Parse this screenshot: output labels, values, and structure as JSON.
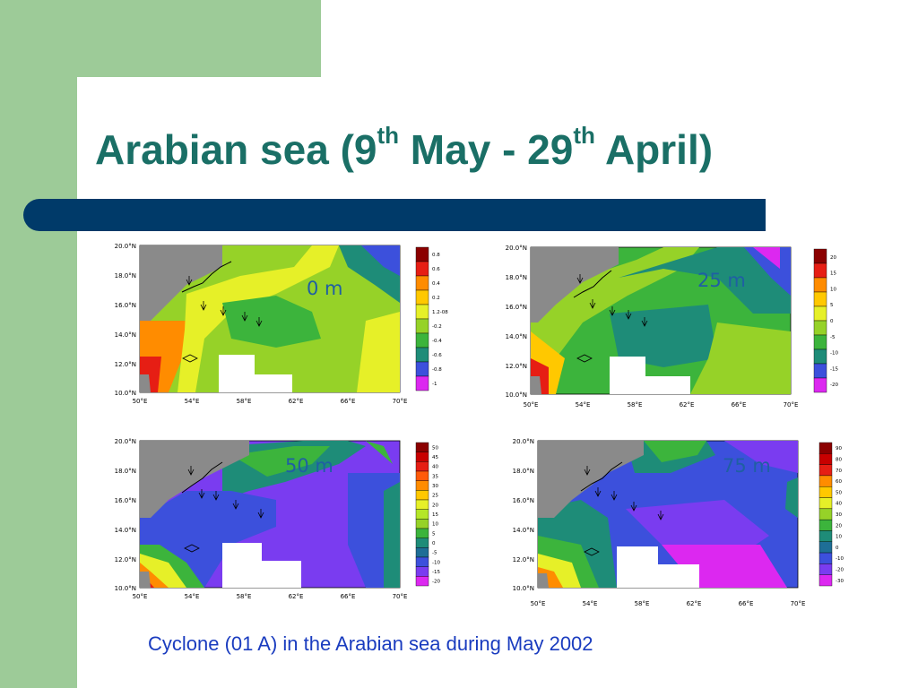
{
  "title": {
    "part1": "Arabian sea (9",
    "sup1": "th",
    "part2": " May - 29",
    "sup2": "th",
    "part3": " April)"
  },
  "caption": "Cyclone (01 A) in the Arabian sea during May 2002",
  "colors": {
    "band": "#9dcb98",
    "title": "#1a6f66",
    "bar": "#003a69",
    "caption": "#1a3cbf",
    "depth_label": "#1f5fa3",
    "land": "#8a8a8a"
  },
  "axes": {
    "lon": [
      "50°E",
      "54°E",
      "58°E",
      "62°E",
      "66°E",
      "70°E"
    ],
    "lat": [
      "20.0°N",
      "18.0°N",
      "16.0°N",
      "14.0°N",
      "12.0°N",
      "10.0°N"
    ]
  },
  "panels": [
    {
      "id": "p0",
      "depth": "0 m",
      "colorbar": [
        "0.8",
        "0.6",
        "0.4",
        "0.2",
        "1.2-08",
        "-0.2",
        "-0.4",
        "-0.6",
        "-0.8",
        "-1"
      ],
      "colors": [
        "#8b0000",
        "#e61e14",
        "#ff8c00",
        "#ffc800",
        "#e6f028",
        "#96d228",
        "#3cb43c",
        "#1e8c78",
        "#3c50dc",
        "#dc28f0"
      ]
    },
    {
      "id": "p25",
      "depth": "25 m",
      "colorbar": [
        "20",
        "15",
        "10",
        "5",
        "0",
        "-5",
        "-10",
        "-15",
        "-20"
      ],
      "colors": [
        "#8b0000",
        "#e61e14",
        "#ff8c00",
        "#ffc800",
        "#e6f028",
        "#96d228",
        "#3cb43c",
        "#1e8c78",
        "#3c50dc",
        "#dc28f0"
      ]
    },
    {
      "id": "p50",
      "depth": "50 m",
      "colorbar": [
        "50",
        "45",
        "40",
        "35",
        "30",
        "25",
        "20",
        "15",
        "10",
        "5",
        "0",
        "-5",
        "-10",
        "-15",
        "-20"
      ],
      "colors": [
        "#8b0000",
        "#c80000",
        "#e61e14",
        "#ff5a0a",
        "#ff8c00",
        "#ffc800",
        "#e6f028",
        "#b4e628",
        "#96d228",
        "#3cb43c",
        "#1e8c78",
        "#1e6e96",
        "#3c50dc",
        "#7a3cf0",
        "#dc28f0"
      ]
    },
    {
      "id": "p75",
      "depth": "75 m",
      "colorbar": [
        "90",
        "80",
        "70",
        "60",
        "50",
        "40",
        "30",
        "20",
        "10",
        "0",
        "-10",
        "-20",
        "-30"
      ],
      "colors": [
        "#8b0000",
        "#c80000",
        "#e61e14",
        "#ff8c00",
        "#ffc800",
        "#e6f028",
        "#96d228",
        "#3cb43c",
        "#1e8c78",
        "#1e6e96",
        "#3c50dc",
        "#7a3cf0",
        "#dc28f0"
      ]
    }
  ]
}
